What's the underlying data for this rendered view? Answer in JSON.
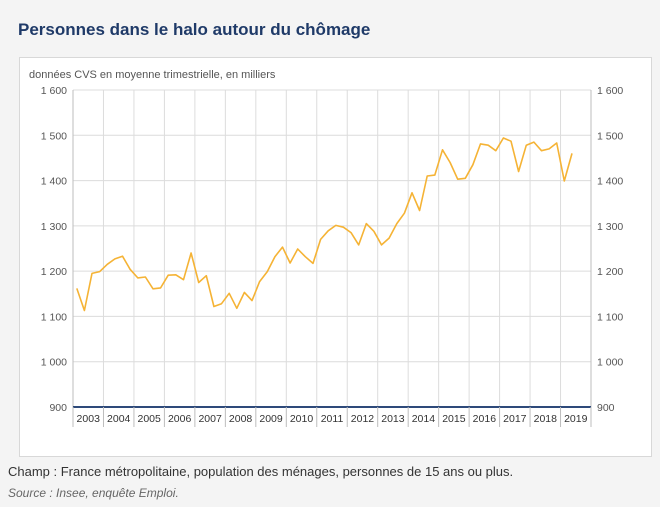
{
  "header": {
    "title": "Personnes dans le halo autour du chômage"
  },
  "footer": {
    "note": "Champ : France métropolitaine, population des ménages, personnes de 15 ans ou plus.",
    "source": "Source : Insee, enquête Emploi."
  },
  "colors": {
    "line": "#f5b335",
    "axis": "#2e4a7a",
    "grid": "#dcdcdc",
    "text": "#555555"
  },
  "chart_data": {
    "type": "line",
    "subtitle": "données CVS en moyenne trimestrielle, en milliers",
    "ylim": [
      900,
      1600
    ],
    "yticks": [
      900,
      1000,
      1100,
      1200,
      1300,
      1400,
      1500,
      1600
    ],
    "ytick_labels": [
      "900",
      "1 000",
      "1 100",
      "1 200",
      "1 300",
      "1 400",
      "1 500",
      "1 600"
    ],
    "years": [
      "2003",
      "2004",
      "2005",
      "2006",
      "2007",
      "2008",
      "2009",
      "2010",
      "2011",
      "2012",
      "2013",
      "2014",
      "2015",
      "2016",
      "2017",
      "2018",
      "2019"
    ],
    "grid": true,
    "series": [
      {
        "values": [
          1162,
          1113,
          1195,
          1199,
          1215,
          1227,
          1233,
          1204,
          1185,
          1187,
          1161,
          1163,
          1191,
          1192,
          1181,
          1240,
          1175,
          1190,
          1122,
          1128,
          1151,
          1118,
          1153,
          1135,
          1177,
          1199,
          1232,
          1253,
          1218,
          1249,
          1232,
          1217,
          1270,
          1289,
          1301,
          1297,
          1285,
          1258,
          1305,
          1288,
          1258,
          1273,
          1305,
          1328,
          1373,
          1334,
          1410,
          1412,
          1468,
          1440,
          1403,
          1405,
          1435,
          1481,
          1478,
          1466,
          1494,
          1487,
          1420,
          1478,
          1485,
          1466,
          1470,
          1483,
          1399,
          1460
        ]
      }
    ]
  }
}
